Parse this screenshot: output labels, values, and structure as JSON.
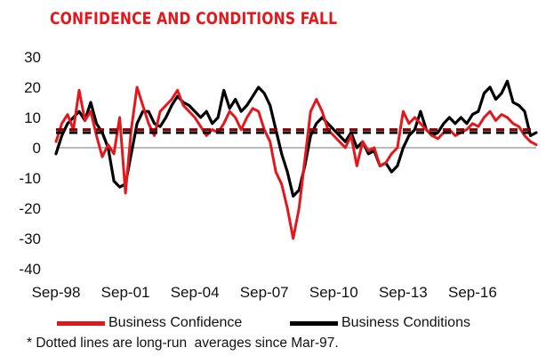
{
  "title": "CONFIDENCE AND CONDITIONS FALL",
  "footnote": "* Dotted lines are long-run  averages since Mar-97.",
  "chart_data": {
    "type": "line",
    "title": "CONFIDENCE AND CONDITIONS FALL",
    "xlabel": "",
    "ylabel": "",
    "ylim": [
      -40,
      30
    ],
    "yticks": [
      30,
      20,
      10,
      0,
      -10,
      -20,
      -30,
      -40
    ],
    "ytick_labels": [
      "30",
      "20",
      "10",
      "0",
      "-10",
      "-20",
      "-30",
      "-40"
    ],
    "xlim": [
      "Sep-98",
      "Jun-19"
    ],
    "xtick_labels": [
      "Sep-98",
      "Sep-01",
      "Sep-04",
      "Sep-07",
      "Sep-10",
      "Sep-13",
      "Sep-16"
    ],
    "grid": false,
    "legend": "bottom",
    "series": [
      {
        "name": "Business Confidence",
        "color": "#e4171d",
        "style": "solid",
        "points": [
          [
            "Sep-98",
            2
          ],
          [
            "Dec-98",
            8
          ],
          [
            "Mar-99",
            11
          ],
          [
            "Jun-99",
            6
          ],
          [
            "Sep-99",
            19
          ],
          [
            "Dec-99",
            9
          ],
          [
            "Mar-00",
            12
          ],
          [
            "Jun-00",
            4
          ],
          [
            "Sep-00",
            -3
          ],
          [
            "Dec-00",
            1
          ],
          [
            "Mar-01",
            -2
          ],
          [
            "Jun-01",
            10
          ],
          [
            "Sep-01",
            -15
          ],
          [
            "Dec-01",
            6
          ],
          [
            "Mar-02",
            20
          ],
          [
            "Jun-02",
            14
          ],
          [
            "Sep-02",
            8
          ],
          [
            "Dec-02",
            4
          ],
          [
            "Mar-03",
            12
          ],
          [
            "Jun-03",
            14
          ],
          [
            "Sep-03",
            16
          ],
          [
            "Dec-03",
            19
          ],
          [
            "Mar-04",
            14
          ],
          [
            "Jun-04",
            12
          ],
          [
            "Sep-04",
            10
          ],
          [
            "Dec-04",
            7
          ],
          [
            "Mar-05",
            4
          ],
          [
            "Jun-05",
            6
          ],
          [
            "Sep-05",
            5
          ],
          [
            "Dec-05",
            8
          ],
          [
            "Mar-06",
            12
          ],
          [
            "Jun-06",
            10
          ],
          [
            "Sep-06",
            6
          ],
          [
            "Dec-06",
            10
          ],
          [
            "Mar-07",
            13
          ],
          [
            "Jun-07",
            12
          ],
          [
            "Sep-07",
            6
          ],
          [
            "Dec-07",
            2
          ],
          [
            "Mar-08",
            -8
          ],
          [
            "Jun-08",
            -12
          ],
          [
            "Sep-08",
            -20
          ],
          [
            "Dec-08",
            -30
          ],
          [
            "Mar-09",
            -20
          ],
          [
            "Jun-09",
            -4
          ],
          [
            "Sep-09",
            12
          ],
          [
            "Dec-09",
            16
          ],
          [
            "Mar-10",
            12
          ],
          [
            "Jun-10",
            6
          ],
          [
            "Sep-10",
            4
          ],
          [
            "Dec-10",
            2
          ],
          [
            "Mar-11",
            0
          ],
          [
            "Jun-11",
            4
          ],
          [
            "Sep-11",
            -6
          ],
          [
            "Dec-11",
            2
          ],
          [
            "Mar-12",
            -1
          ],
          [
            "Jun-12",
            0
          ],
          [
            "Sep-12",
            -6
          ],
          [
            "Dec-12",
            -5
          ],
          [
            "Mar-13",
            -2
          ],
          [
            "Jun-13",
            0
          ],
          [
            "Sep-13",
            12
          ],
          [
            "Dec-13",
            8
          ],
          [
            "Mar-14",
            10
          ],
          [
            "Jun-14",
            8
          ],
          [
            "Sep-14",
            6
          ],
          [
            "Dec-14",
            4
          ],
          [
            "Mar-15",
            3
          ],
          [
            "Jun-15",
            5
          ],
          [
            "Sep-15",
            6
          ],
          [
            "Dec-15",
            4
          ],
          [
            "Mar-16",
            5
          ],
          [
            "Jun-16",
            6
          ],
          [
            "Sep-16",
            8
          ],
          [
            "Dec-16",
            7
          ],
          [
            "Mar-17",
            10
          ],
          [
            "Jun-17",
            12
          ],
          [
            "Sep-17",
            9
          ],
          [
            "Dec-17",
            11
          ],
          [
            "Mar-18",
            10
          ],
          [
            "Jun-18",
            8
          ],
          [
            "Sep-18",
            7
          ],
          [
            "Dec-18",
            4
          ],
          [
            "Mar-19",
            2
          ],
          [
            "Jun-19",
            1
          ]
        ]
      },
      {
        "name": "Business Conditions",
        "color": "#000000",
        "style": "solid",
        "points": [
          [
            "Sep-98",
            -2
          ],
          [
            "Dec-98",
            4
          ],
          [
            "Mar-99",
            8
          ],
          [
            "Jun-99",
            10
          ],
          [
            "Sep-99",
            12
          ],
          [
            "Dec-99",
            9
          ],
          [
            "Mar-00",
            15
          ],
          [
            "Jun-00",
            8
          ],
          [
            "Sep-00",
            5
          ],
          [
            "Dec-00",
            0
          ],
          [
            "Mar-01",
            -11
          ],
          [
            "Jun-01",
            -13
          ],
          [
            "Sep-01",
            -12
          ],
          [
            "Dec-01",
            -2
          ],
          [
            "Mar-02",
            8
          ],
          [
            "Jun-02",
            12
          ],
          [
            "Sep-02",
            12
          ],
          [
            "Dec-02",
            8
          ],
          [
            "Mar-03",
            7
          ],
          [
            "Jun-03",
            10
          ],
          [
            "Sep-03",
            14
          ],
          [
            "Dec-03",
            17
          ],
          [
            "Mar-04",
            15
          ],
          [
            "Jun-04",
            14
          ],
          [
            "Sep-04",
            12
          ],
          [
            "Dec-04",
            10
          ],
          [
            "Mar-05",
            12
          ],
          [
            "Jun-05",
            8
          ],
          [
            "Sep-05",
            10
          ],
          [
            "Dec-05",
            19
          ],
          [
            "Mar-06",
            13
          ],
          [
            "Jun-06",
            16
          ],
          [
            "Sep-06",
            12
          ],
          [
            "Dec-06",
            14
          ],
          [
            "Mar-07",
            17
          ],
          [
            "Jun-07",
            20
          ],
          [
            "Sep-07",
            18
          ],
          [
            "Dec-07",
            14
          ],
          [
            "Mar-08",
            6
          ],
          [
            "Jun-08",
            -2
          ],
          [
            "Sep-08",
            -8
          ],
          [
            "Dec-08",
            -16
          ],
          [
            "Mar-09",
            -14
          ],
          [
            "Jun-09",
            -6
          ],
          [
            "Sep-09",
            4
          ],
          [
            "Dec-09",
            8
          ],
          [
            "Mar-10",
            10
          ],
          [
            "Jun-10",
            8
          ],
          [
            "Sep-10",
            6
          ],
          [
            "Dec-10",
            4
          ],
          [
            "Mar-11",
            2
          ],
          [
            "Jun-11",
            5
          ],
          [
            "Sep-11",
            0
          ],
          [
            "Dec-11",
            2
          ],
          [
            "Mar-12",
            -2
          ],
          [
            "Jun-12",
            -1
          ],
          [
            "Sep-12",
            -6
          ],
          [
            "Dec-12",
            -5
          ],
          [
            "Mar-13",
            -8
          ],
          [
            "Jun-13",
            -6
          ],
          [
            "Sep-13",
            0
          ],
          [
            "Dec-13",
            4
          ],
          [
            "Mar-14",
            6
          ],
          [
            "Jun-14",
            12
          ],
          [
            "Sep-14",
            6
          ],
          [
            "Dec-14",
            4
          ],
          [
            "Mar-15",
            5
          ],
          [
            "Jun-15",
            8
          ],
          [
            "Sep-15",
            10
          ],
          [
            "Dec-15",
            8
          ],
          [
            "Mar-16",
            10
          ],
          [
            "Jun-16",
            8
          ],
          [
            "Sep-16",
            11
          ],
          [
            "Dec-16",
            12
          ],
          [
            "Mar-17",
            18
          ],
          [
            "Jun-17",
            20
          ],
          [
            "Sep-17",
            16
          ],
          [
            "Dec-17",
            18
          ],
          [
            "Mar-18",
            22
          ],
          [
            "Jun-18",
            15
          ],
          [
            "Sep-18",
            14
          ],
          [
            "Dec-18",
            12
          ],
          [
            "Mar-19",
            4
          ],
          [
            "Jun-19",
            5
          ]
        ]
      },
      {
        "name": "Business Confidence long-run average",
        "color": "#8b0000",
        "style": "dashed",
        "points": [
          [
            "Sep-98",
            6
          ],
          [
            "Jun-19",
            6
          ]
        ]
      },
      {
        "name": "Business Conditions long-run average",
        "color": "#000000",
        "style": "dashed",
        "points": [
          [
            "Sep-98",
            5
          ],
          [
            "Jun-19",
            5
          ]
        ]
      }
    ]
  }
}
